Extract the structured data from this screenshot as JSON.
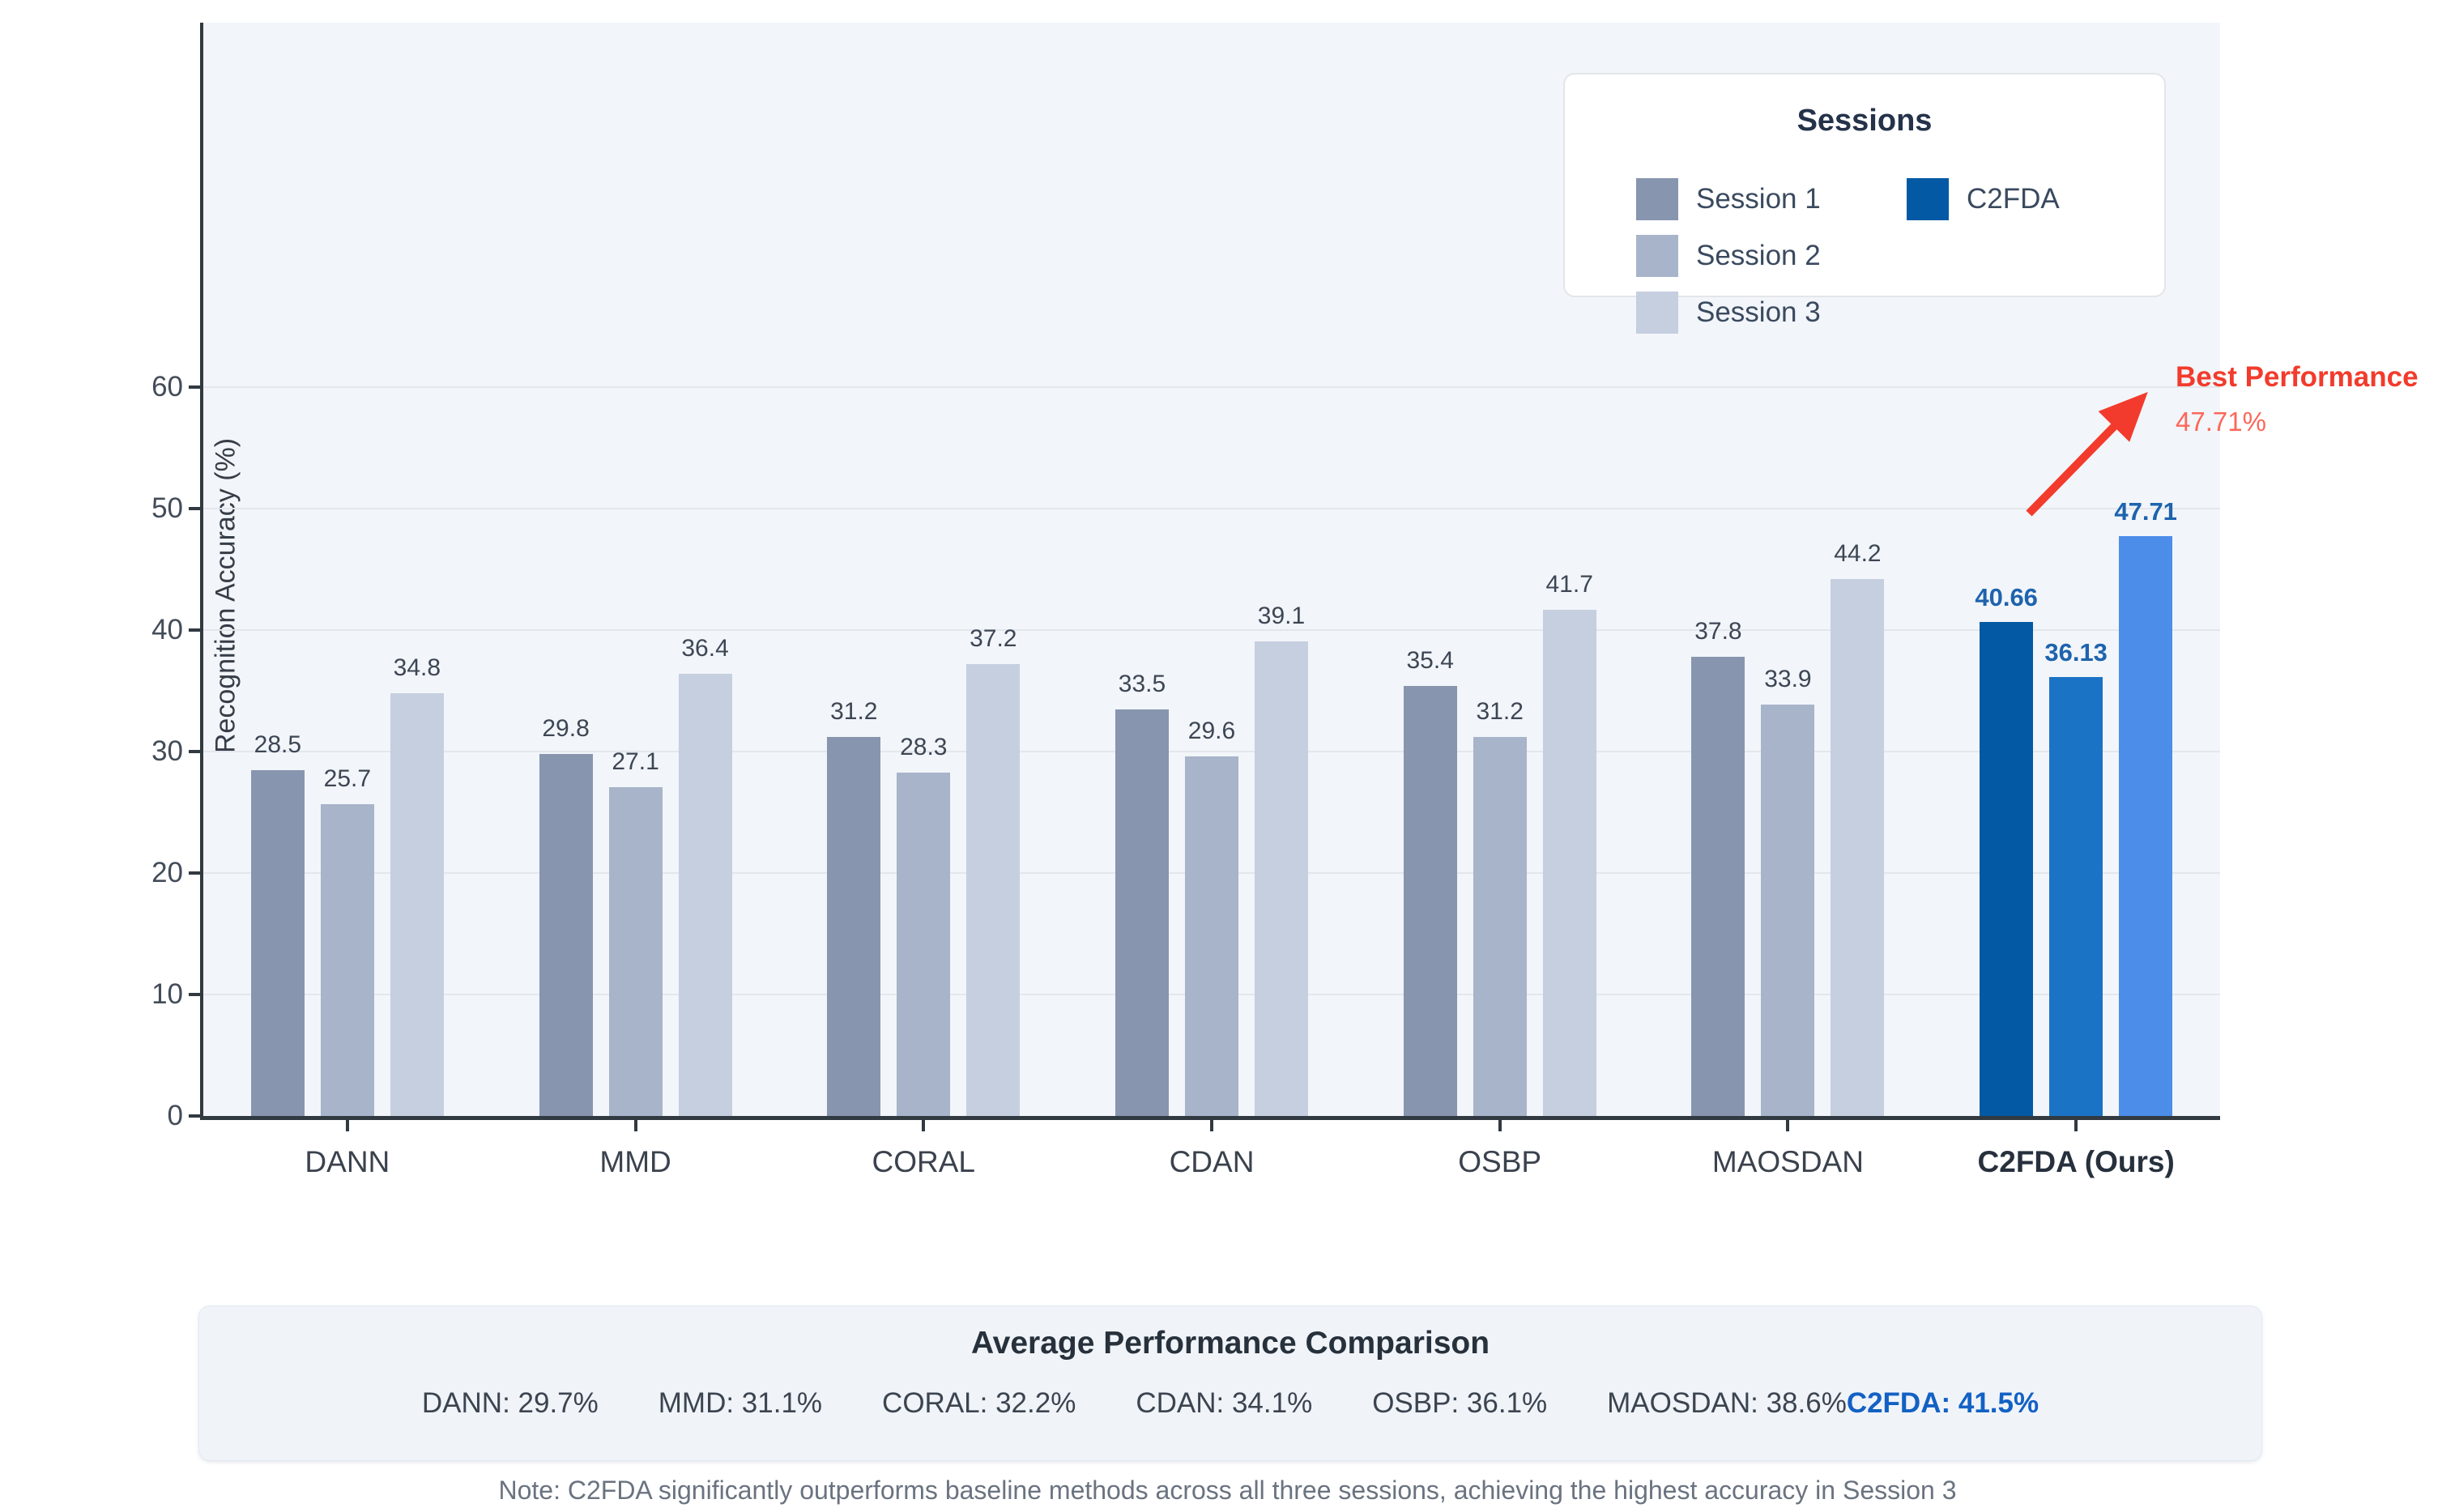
{
  "chart_data": {
    "type": "bar",
    "title": "",
    "xlabel": "",
    "ylabel": "Recognition Accuracy (%)",
    "ylim": [
      0,
      90
    ],
    "yticks": [
      0,
      10,
      20,
      30,
      40,
      50,
      60
    ],
    "grid": "horizontal",
    "legend_position": "top-right",
    "categories": [
      "DANN",
      "MMD",
      "CORAL",
      "CDAN",
      "OSBP",
      "MAOSDAN",
      "C2FDA (Ours)"
    ],
    "highlight_index": 6,
    "series": [
      {
        "name": "Session 1",
        "color": "#8795af",
        "highlight_color": "#0359a4",
        "values": [
          28.5,
          29.8,
          31.2,
          33.5,
          35.4,
          37.8,
          40.66
        ]
      },
      {
        "name": "Session 2",
        "color": "#a7b4c9",
        "highlight_color": "#1b73c6",
        "values": [
          25.7,
          27.1,
          28.3,
          29.6,
          31.2,
          33.9,
          36.13
        ]
      },
      {
        "name": "Session 3",
        "color": "#c5cfe0",
        "highlight_color": "#4c8de9",
        "values": [
          34.8,
          36.4,
          37.2,
          39.1,
          41.7,
          44.2,
          47.71
        ]
      }
    ]
  },
  "legend": {
    "title": "Sessions",
    "items": [
      {
        "label": "Session 1",
        "color": "#8795af",
        "column": 1,
        "row": 1
      },
      {
        "label": "Session 2",
        "color": "#a7b4c9",
        "column": 1,
        "row": 2
      },
      {
        "label": "Session 3",
        "color": "#c5cfe0",
        "column": 1,
        "row": 3
      },
      {
        "label": "C2FDA",
        "color": "#0359a4",
        "column": 2,
        "row": 1
      }
    ]
  },
  "annotation": {
    "title": "Best Performance",
    "value": "47.71%",
    "arrow_color": "#f23b2c"
  },
  "summary": {
    "title": "Average Performance Comparison",
    "items": [
      {
        "text": "DANN: 29.7%"
      },
      {
        "text": "MMD: 31.1%"
      },
      {
        "text": "CORAL: 32.2%"
      },
      {
        "text": "CDAN: 34.1%"
      },
      {
        "text": "OSBP: 36.1%"
      },
      {
        "text": "MAOSDAN: 38.6%"
      }
    ],
    "highlight": {
      "text": "C2FDA: 41.5%",
      "color": "#1361c4"
    }
  },
  "note": "Note: C2FDA significantly outperforms baseline methods across all three sessions, achieving the highest accuracy in Session 3"
}
